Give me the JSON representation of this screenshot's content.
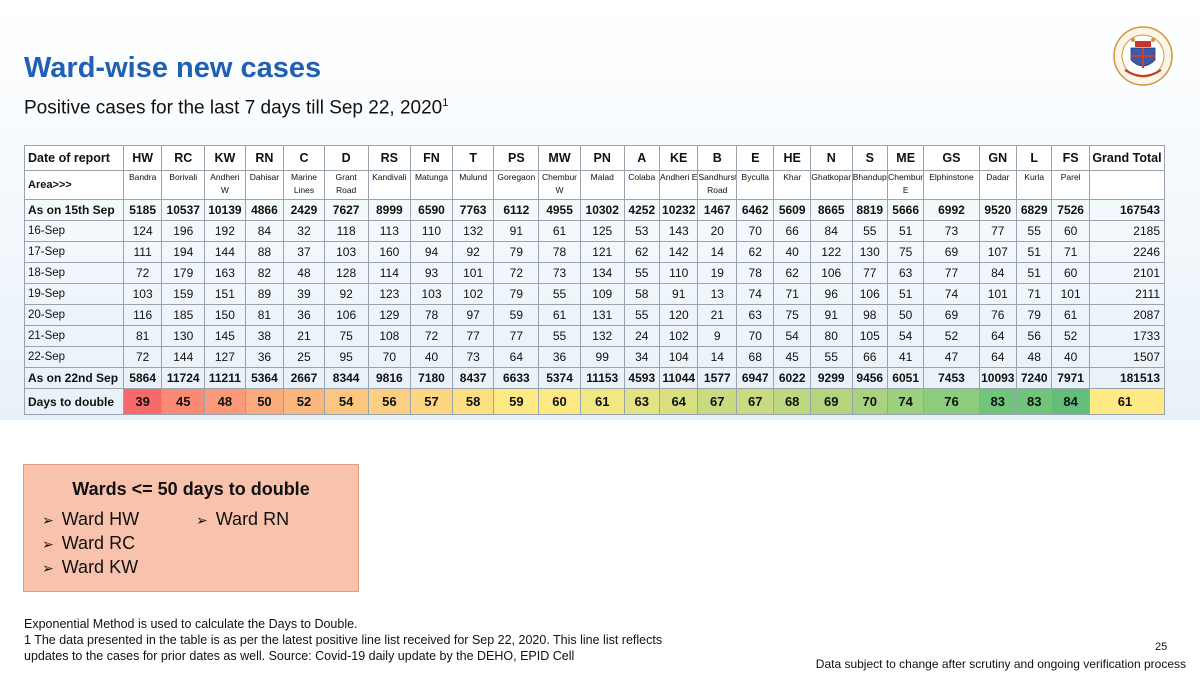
{
  "title": "Ward-wise new cases",
  "subtitle": "Positive cases for the last 7 days till Sep 22, 2020",
  "subtitle_sup": "1",
  "table": {
    "header": [
      "Date of report",
      "HW",
      "RC",
      "KW",
      "RN",
      "C",
      "D",
      "RS",
      "FN",
      "T",
      "PS",
      "MW",
      "PN",
      "A",
      "KE",
      "B",
      "E",
      "HE",
      "N",
      "S",
      "ME",
      "GS",
      "GN",
      "L",
      "FS",
      "Grand Total"
    ],
    "area_label": "Area>>>",
    "areas": [
      "Bandra",
      "Borivali",
      "Andheri W",
      "Dahisar",
      "Marine Lines",
      "Grant Road",
      "Kandivali",
      "Matunga",
      "Mulund",
      "Goregaon",
      "Chembur W",
      "Malad",
      "Colaba",
      "Andheri E",
      "Sandhurst Road",
      "Byculla",
      "Khar",
      "Ghatkopar",
      "Bhandup",
      "Chembur E",
      "Elphinstone",
      "Dadar",
      "Kurla",
      "Parel",
      ""
    ],
    "rows": [
      {
        "label": "As on 15th Sep",
        "bold": true,
        "values": [
          "5185",
          "10537",
          "10139",
          "4866",
          "2429",
          "7627",
          "8999",
          "6590",
          "7763",
          "6112",
          "4955",
          "10302",
          "4252",
          "10232",
          "1467",
          "6462",
          "5609",
          "8665",
          "8819",
          "5666",
          "6992",
          "9520",
          "6829",
          "7526",
          "167543"
        ]
      },
      {
        "label": "16-Sep",
        "bold": false,
        "values": [
          "124",
          "196",
          "192",
          "84",
          "32",
          "118",
          "113",
          "110",
          "132",
          "91",
          "61",
          "125",
          "53",
          "143",
          "20",
          "70",
          "66",
          "84",
          "55",
          "51",
          "73",
          "77",
          "55",
          "60",
          "2185"
        ]
      },
      {
        "label": "17-Sep",
        "bold": false,
        "values": [
          "111",
          "194",
          "144",
          "88",
          "37",
          "103",
          "160",
          "94",
          "92",
          "79",
          "78",
          "121",
          "62",
          "142",
          "14",
          "62",
          "40",
          "122",
          "130",
          "75",
          "69",
          "107",
          "51",
          "71",
          "2246"
        ]
      },
      {
        "label": "18-Sep",
        "bold": false,
        "values": [
          "72",
          "179",
          "163",
          "82",
          "48",
          "128",
          "114",
          "93",
          "101",
          "72",
          "73",
          "134",
          "55",
          "110",
          "19",
          "78",
          "62",
          "106",
          "77",
          "63",
          "77",
          "84",
          "51",
          "60",
          "2101"
        ]
      },
      {
        "label": "19-Sep",
        "bold": false,
        "values": [
          "103",
          "159",
          "151",
          "89",
          "39",
          "92",
          "123",
          "103",
          "102",
          "79",
          "55",
          "109",
          "58",
          "91",
          "13",
          "74",
          "71",
          "96",
          "106",
          "51",
          "74",
          "101",
          "71",
          "101",
          "2111"
        ]
      },
      {
        "label": "20-Sep",
        "bold": false,
        "values": [
          "116",
          "185",
          "150",
          "81",
          "36",
          "106",
          "129",
          "78",
          "97",
          "59",
          "61",
          "131",
          "55",
          "120",
          "21",
          "63",
          "75",
          "91",
          "98",
          "50",
          "69",
          "76",
          "79",
          "61",
          "2087"
        ]
      },
      {
        "label": "21-Sep",
        "bold": false,
        "values": [
          "81",
          "130",
          "145",
          "38",
          "21",
          "75",
          "108",
          "72",
          "77",
          "77",
          "55",
          "132",
          "24",
          "102",
          "9",
          "70",
          "54",
          "80",
          "105",
          "54",
          "52",
          "64",
          "56",
          "52",
          "1733"
        ]
      },
      {
        "label": "22-Sep",
        "bold": false,
        "values": [
          "72",
          "144",
          "127",
          "36",
          "25",
          "95",
          "70",
          "40",
          "73",
          "64",
          "36",
          "99",
          "34",
          "104",
          "14",
          "68",
          "45",
          "55",
          "66",
          "41",
          "47",
          "64",
          "48",
          "40",
          "1507"
        ]
      },
      {
        "label": "As on 22nd Sep",
        "bold": true,
        "values": [
          "5864",
          "11724",
          "11211",
          "5364",
          "2667",
          "8344",
          "9816",
          "7180",
          "8437",
          "6633",
          "5374",
          "11153",
          "4593",
          "11044",
          "1577",
          "6947",
          "6022",
          "9299",
          "9456",
          "6051",
          "7453",
          "10093",
          "7240",
          "7971",
          "181513"
        ]
      }
    ],
    "doubling": {
      "label": "Days to double",
      "values": [
        "39",
        "45",
        "48",
        "50",
        "52",
        "54",
        "56",
        "57",
        "58",
        "59",
        "60",
        "61",
        "63",
        "64",
        "67",
        "67",
        "68",
        "69",
        "70",
        "74",
        "76",
        "83",
        "83",
        "84",
        "61"
      ],
      "colors": [
        "#f8696b",
        "#f98b74",
        "#fa9a78",
        "#fbaa7b",
        "#fcb77e",
        "#fcc580",
        "#fdcf82",
        "#fed682",
        "#fee083",
        "#ffe984",
        "#fbea84",
        "#f1e783",
        "#e4e383",
        "#d7df81",
        "#c8db80",
        "#c8db80",
        "#bed87f",
        "#b4d57e",
        "#a9d27e",
        "#9ccf7e",
        "#8dcb7d",
        "#71c47b",
        "#71c47b",
        "#63be7b",
        "#ffe984"
      ]
    }
  },
  "box": {
    "title": "Wards <= 50 days to double",
    "items": [
      "Ward HW",
      "Ward RN",
      "Ward RC",
      "Ward KW"
    ]
  },
  "footnote": {
    "line1": "Exponential Method is used to calculate the Days to Double.",
    "line2": "1 The data presented in the table is as per the latest positive line list received for Sep 22, 2020. This line list reflects",
    "line3": "updates to the cases for prior dates as well. Source: Covid-19 daily update by the DEHO, EPID Cell"
  },
  "page_number": "25",
  "disclaimer": "Data subject to change after scrutiny and ongoing verification process"
}
